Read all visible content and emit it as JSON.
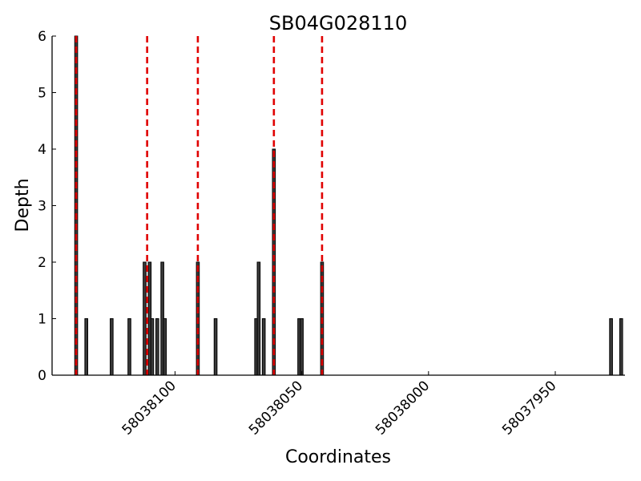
{
  "chart_data": {
    "type": "bar",
    "title": "SB04G028110",
    "xlabel": "Coordinates",
    "ylabel": "Depth",
    "x_reversed": true,
    "xlim": [
      58038148.5,
      58037922.5
    ],
    "ylim": [
      0,
      6
    ],
    "x_ticks": [
      58038100,
      58038050,
      58038000,
      58037950
    ],
    "x_tick_labels": [
      "58038100",
      "58038050",
      "58038000",
      "58037950"
    ],
    "y_ticks": [
      0,
      1,
      2,
      3,
      4,
      5,
      6
    ],
    "y_tick_labels": [
      "0",
      "1",
      "2",
      "3",
      "4",
      "5",
      "6"
    ],
    "grid": false,
    "bar_color": "#3a3a3a",
    "bar_edge_color": "#000000",
    "bars": [
      {
        "x": 58038139,
        "y": 6
      },
      {
        "x": 58038135,
        "y": 1
      },
      {
        "x": 58038125,
        "y": 1
      },
      {
        "x": 58038118,
        "y": 1
      },
      {
        "x": 58038112,
        "y": 2
      },
      {
        "x": 58038110,
        "y": 2
      },
      {
        "x": 58038109,
        "y": 1
      },
      {
        "x": 58038107,
        "y": 1
      },
      {
        "x": 58038105,
        "y": 2
      },
      {
        "x": 58038104,
        "y": 1
      },
      {
        "x": 58038091,
        "y": 2
      },
      {
        "x": 58038084,
        "y": 1
      },
      {
        "x": 58038068,
        "y": 1
      },
      {
        "x": 58038067,
        "y": 2
      },
      {
        "x": 58038065,
        "y": 1
      },
      {
        "x": 58038061,
        "y": 4
      },
      {
        "x": 58038051,
        "y": 1
      },
      {
        "x": 58038050,
        "y": 1
      },
      {
        "x": 58038042,
        "y": 2
      },
      {
        "x": 58037928,
        "y": 1
      },
      {
        "x": 58037924,
        "y": 1
      }
    ],
    "marker_lines": {
      "color": "#e00000",
      "style": "dashed",
      "x": [
        58038139,
        58038111,
        58038091,
        58038061,
        58038042
      ]
    }
  }
}
